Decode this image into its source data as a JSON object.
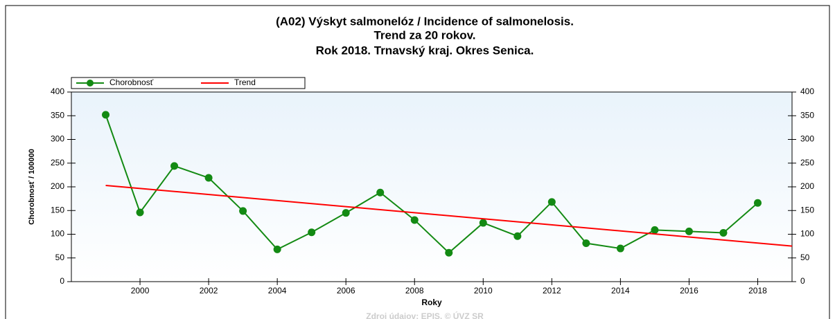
{
  "chart_data": {
    "type": "line",
    "title": [
      "(A02) Výskyt salmonelóz / Incidence of salmonelosis.",
      "Trend za 20 rokov.",
      "Rok 2018. Trnavský kraj. Okres Senica."
    ],
    "xlabel": "Roky",
    "ylabel": "Chorobnosť / 100000",
    "source": "Zdroj údajov: EPIS, © ÚVZ SR",
    "x": [
      1999,
      2000,
      2001,
      2002,
      2003,
      2004,
      2005,
      2006,
      2007,
      2008,
      2009,
      2010,
      2011,
      2012,
      2013,
      2014,
      2015,
      2016,
      2017,
      2018
    ],
    "series": [
      {
        "name": "Chorobnosť",
        "color": "#138a13",
        "values": [
          352,
          146,
          244,
          219,
          149,
          68,
          104,
          145,
          188,
          130,
          61,
          124,
          96,
          168,
          81,
          70,
          109,
          106,
          103,
          166
        ]
      },
      {
        "name": "Trend",
        "color": "#ff0000",
        "x": [
          1999,
          2019
        ],
        "values": [
          203,
          75
        ]
      }
    ],
    "xlim": [
      1998,
      2019
    ],
    "xticks": [
      2000,
      2002,
      2004,
      2006,
      2008,
      2010,
      2012,
      2014,
      2016,
      2018
    ],
    "ylim": [
      0,
      400
    ],
    "yticks": [
      0,
      50,
      100,
      150,
      200,
      250,
      300,
      350,
      400
    ],
    "y2lim": [
      0,
      400
    ],
    "y2ticks": [
      0,
      50,
      100,
      150,
      200,
      250,
      300,
      350,
      400
    ],
    "legend": "top-left"
  }
}
